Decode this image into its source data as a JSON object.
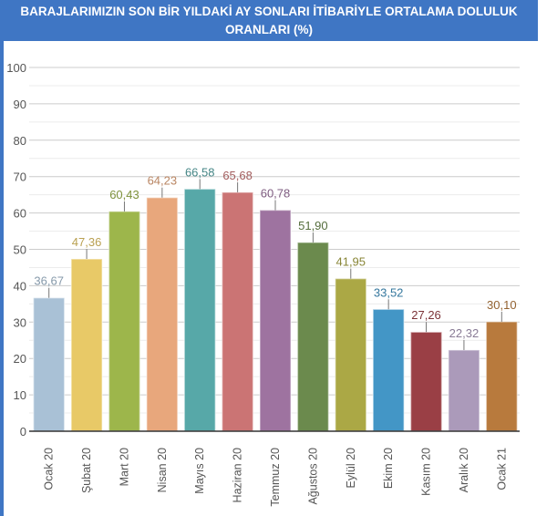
{
  "chart_data": {
    "type": "bar",
    "title": "BARAJLARIMIZIN SON BİR YILDAKİ AY SONLARI İTİBARİYLE ORTALAMA DOLULUK ORANLARI (%)",
    "xlabel": "",
    "ylabel": "",
    "ylim": [
      0,
      100
    ],
    "yticks": [
      0,
      10,
      20,
      30,
      40,
      50,
      60,
      70,
      80,
      90,
      100
    ],
    "grid": true,
    "categories": [
      "Ocak 20",
      "Şubat 20",
      "Mart 20",
      "Nisan 20",
      "Mayıs 20",
      "Haziran 20",
      "Temmuz 20",
      "Ağustos 20",
      "Eylül 20",
      "Ekim 20",
      "Kasım 20",
      "Aralık 20",
      "Ocak 21"
    ],
    "values": [
      36.67,
      47.36,
      60.43,
      64.23,
      66.58,
      65.68,
      60.78,
      51.9,
      41.95,
      33.52,
      27.26,
      22.32,
      30.1
    ],
    "value_labels": [
      "36,67",
      "47,36",
      "60,43",
      "64,23",
      "66,58",
      "65,68",
      "60,78",
      "51,90",
      "41,95",
      "33,52",
      "27,26",
      "22,32",
      "30,10"
    ],
    "colors": [
      "#a9c1d6",
      "#e8c967",
      "#9db64b",
      "#e8a77c",
      "#57a8a8",
      "#cb7474",
      "#9e73a0",
      "#6b8a4d",
      "#aba845",
      "#4396c6",
      "#9a3f45",
      "#ab9aba",
      "#b87a3d"
    ]
  }
}
